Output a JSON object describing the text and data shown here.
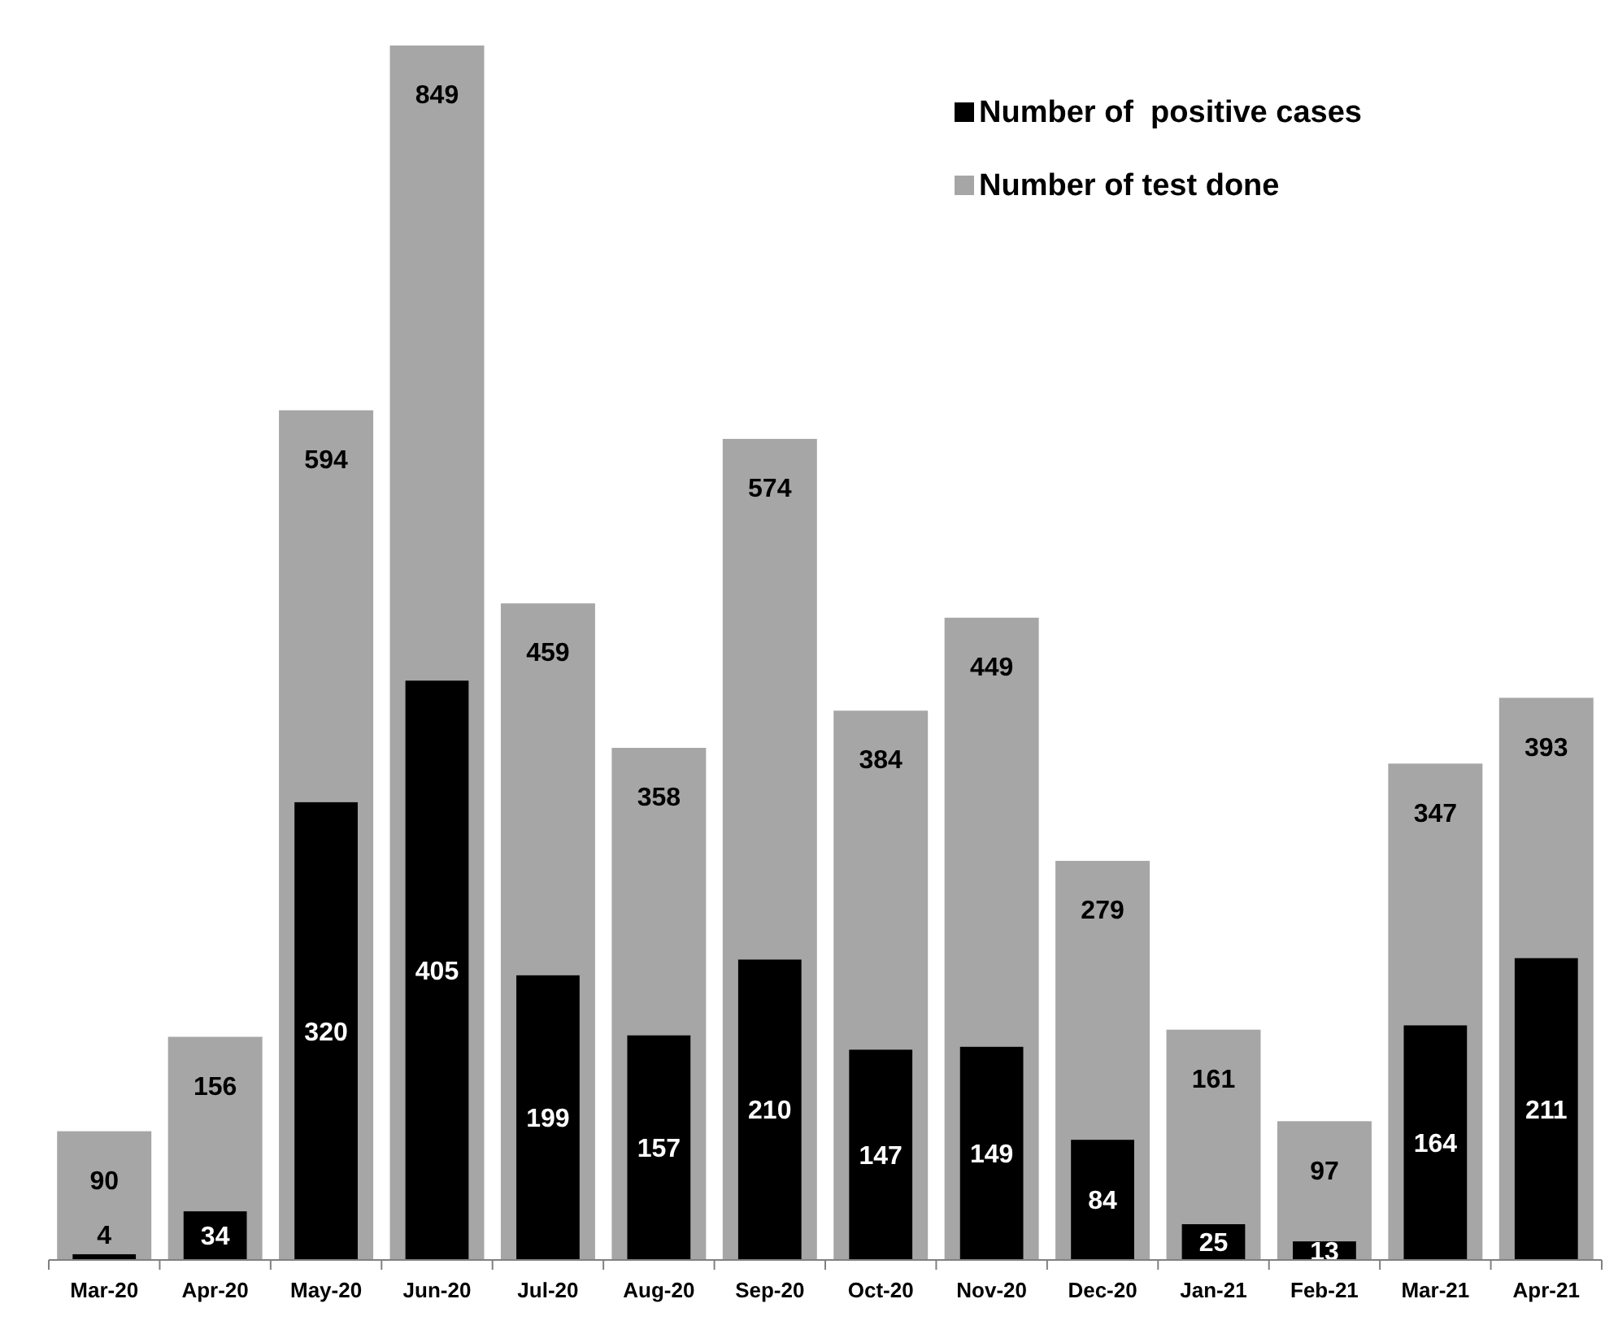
{
  "chart_data": {
    "type": "bar",
    "categories": [
      "Mar-20",
      "Apr-20",
      "May-20",
      "Jun-20",
      "Jul-20",
      "Aug-20",
      "Sep-20",
      "Oct-20",
      "Nov-20",
      "Dec-20",
      "Jan-21",
      "Feb-21",
      "Mar-21",
      "Apr-21"
    ],
    "series": [
      {
        "name": "Number of  positive cases",
        "color": "#000000",
        "values": [
          4,
          34,
          320,
          405,
          199,
          157,
          210,
          147,
          149,
          84,
          25,
          13,
          164,
          211
        ]
      },
      {
        "name": "Number of test done",
        "color": "#a6a6a6",
        "values": [
          90,
          156,
          594,
          849,
          459,
          358,
          574,
          384,
          449,
          279,
          161,
          97,
          347,
          393
        ]
      }
    ],
    "data_labels": true,
    "legend": "top right"
  }
}
